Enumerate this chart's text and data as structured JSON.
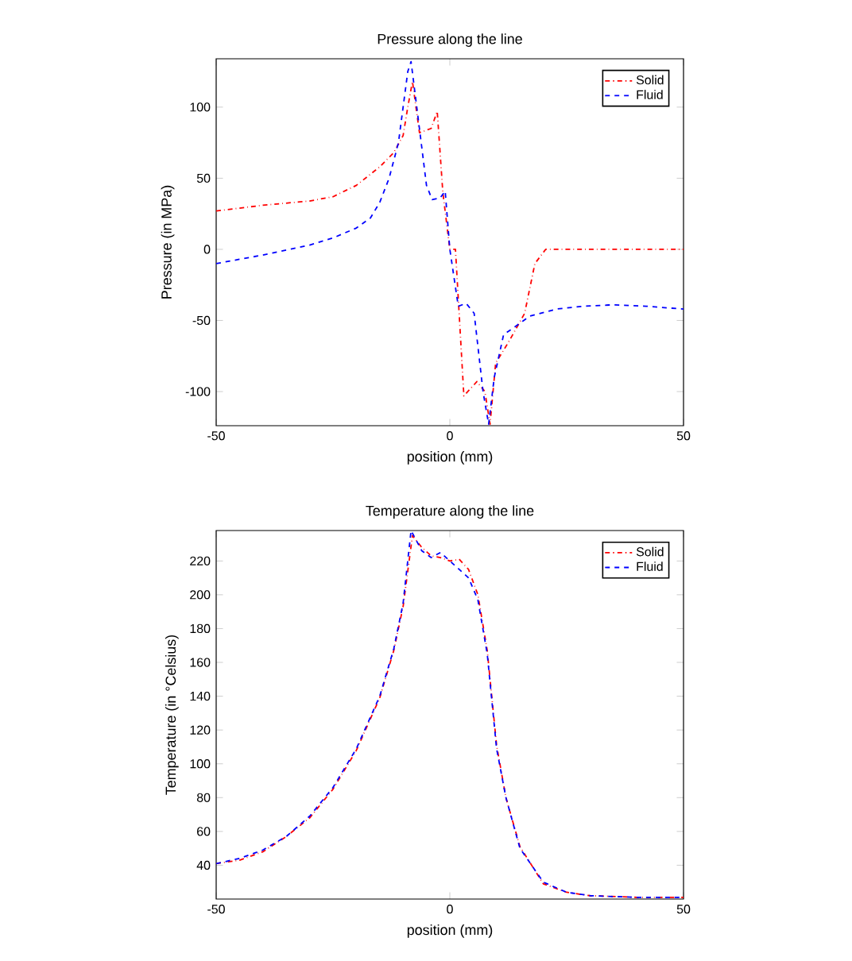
{
  "chart_data": [
    {
      "type": "line",
      "title": "Pressure along the line",
      "xlabel": "position (mm)",
      "ylabel": "Pressure (in MPa)",
      "xlim": [
        -50,
        50
      ],
      "ylim": [
        -124,
        134
      ],
      "xticks": [
        -50,
        0,
        50
      ],
      "yticks": [
        -100,
        -50,
        0,
        50,
        100
      ],
      "grid": false,
      "legend": "top right",
      "marker": "none",
      "series": [
        {
          "name": "Solid",
          "color": "#ff0000",
          "line_style": "dashdot",
          "x": [
            -50,
            -40,
            -30,
            -25,
            -20,
            -15,
            -12,
            -10,
            -9,
            -8,
            -6.5,
            -4,
            -2.7,
            -1.5,
            0,
            1.2,
            3,
            5.8,
            7.5,
            8.6,
            9.8,
            12.6,
            16,
            18.2,
            20.5,
            30,
            40,
            50
          ],
          "values": [
            27,
            31,
            34,
            37,
            45,
            58,
            68,
            80,
            100,
            118,
            82,
            85,
            97,
            40,
            0,
            0,
            -103,
            -93,
            -100,
            -123,
            -80,
            -65,
            -45,
            -10,
            0,
            0,
            0,
            0
          ]
        },
        {
          "name": "Fluid",
          "color": "#0000ff",
          "line_style": "dashed",
          "x": [
            -50,
            -40,
            -30,
            -25,
            -20,
            -17,
            -15,
            -13,
            -11,
            -10,
            -9,
            -8.3,
            -6.7,
            -5,
            -3.8,
            -2.1,
            -1,
            0,
            1.8,
            3.5,
            5.2,
            7.1,
            8.3,
            9.5,
            11.5,
            13.7,
            17.1,
            22.8,
            28.5,
            35,
            42,
            50
          ],
          "values": [
            -10,
            -4,
            3,
            8,
            15,
            22,
            33,
            50,
            75,
            100,
            125,
            132,
            90,
            45,
            35,
            36,
            41,
            0,
            -40,
            -38,
            -45,
            -100,
            -123,
            -90,
            -60,
            -55,
            -47,
            -42,
            -40,
            -39,
            -40,
            -42
          ]
        }
      ]
    },
    {
      "type": "line",
      "title": "Temperature along the line",
      "xlabel": "position (mm)",
      "ylabel": "Temperature (in °Celsius)",
      "xlim": [
        -50,
        50
      ],
      "ylim": [
        20,
        238
      ],
      "xticks": [
        -50,
        0,
        50
      ],
      "yticks": [
        40,
        60,
        80,
        100,
        120,
        140,
        160,
        180,
        200,
        220
      ],
      "grid": false,
      "legend": "top right",
      "marker": "none",
      "series": [
        {
          "name": "Solid",
          "color": "#ff0000",
          "line_style": "dashdot",
          "x": [
            -50,
            -45,
            -40,
            -35,
            -30,
            -25,
            -20,
            -15,
            -12,
            -10,
            -8,
            -6,
            -4,
            -2,
            0,
            2,
            4,
            6,
            8,
            10,
            12,
            15,
            20,
            25,
            30,
            40,
            50
          ],
          "values": [
            41,
            43,
            48,
            57,
            68,
            85,
            108,
            139,
            167,
            193,
            235,
            228,
            223,
            222,
            220,
            221,
            215,
            200,
            167,
            111,
            80,
            51,
            29,
            24,
            22,
            21,
            21
          ]
        },
        {
          "name": "Fluid",
          "color": "#0000ff",
          "line_style": "dashed",
          "x": [
            -50,
            -45,
            -40,
            -35,
            -30,
            -25,
            -20,
            -15,
            -12,
            -10,
            -8.3,
            -6,
            -4,
            -2,
            0,
            2,
            4,
            6,
            8,
            10,
            12,
            15,
            20,
            25,
            30,
            40,
            50
          ],
          "values": [
            41,
            44,
            49,
            57,
            69,
            86,
            109,
            140,
            168,
            195,
            238,
            226,
            222,
            225,
            220,
            215,
            210,
            197,
            165,
            109,
            80,
            50,
            30,
            24,
            22,
            21,
            21
          ]
        }
      ]
    }
  ]
}
